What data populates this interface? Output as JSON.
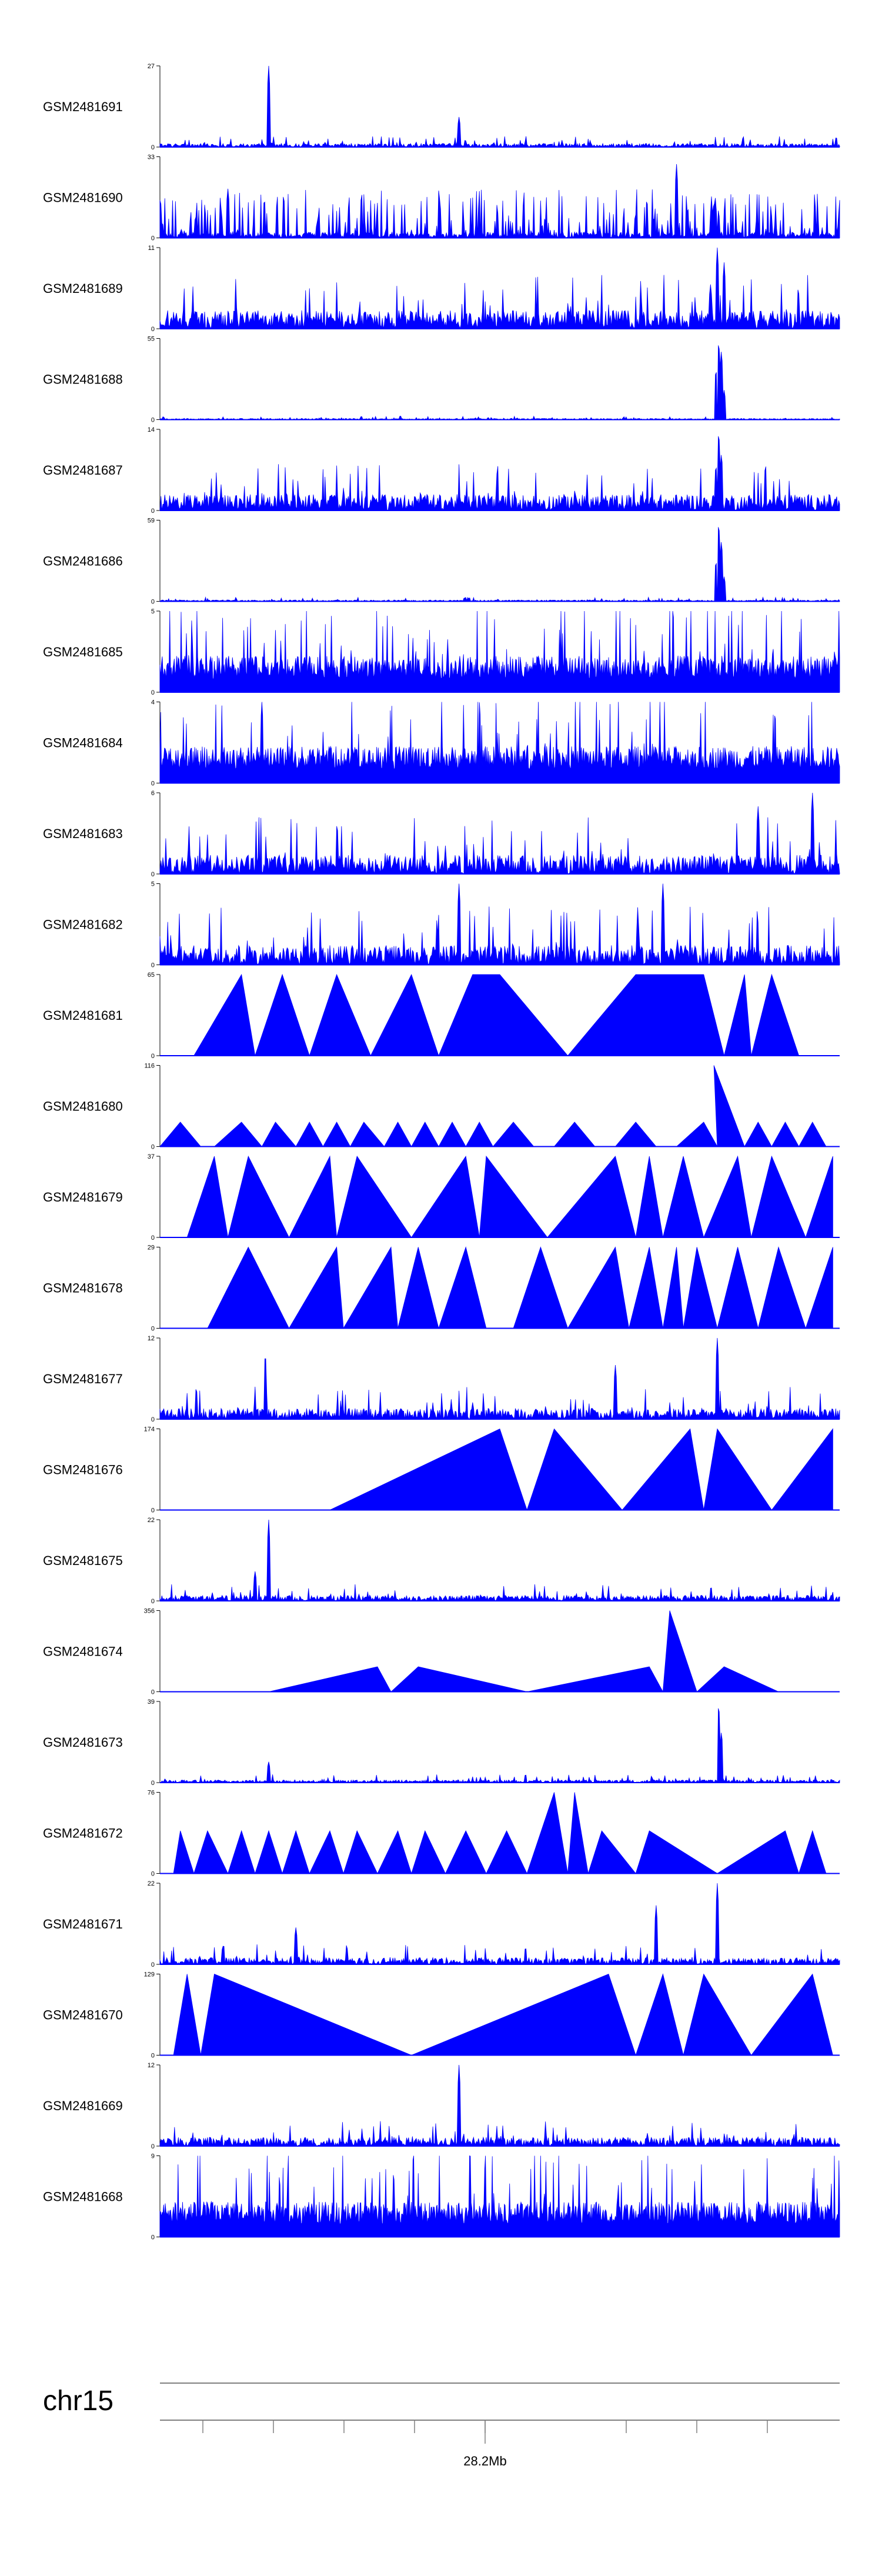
{
  "chart_data": {
    "type": "area",
    "title": "",
    "chromosome": "chr15",
    "position_label": "28.2Mb",
    "fill_color": "#0000ff",
    "axis_color": "#000000",
    "ruler_color": "#808080",
    "tracks": [
      {
        "name": "GSM2481691",
        "ymax": 27,
        "style": "noise",
        "base": 1.2,
        "spikes": [
          [
            0.16,
            27
          ],
          [
            0.44,
            10
          ]
        ]
      },
      {
        "name": "GSM2481690",
        "ymax": 33,
        "style": "mixed",
        "base": 8,
        "spikes": [
          [
            0.76,
            30
          ],
          [
            0.1,
            20
          ]
        ]
      },
      {
        "name": "GSM2481689",
        "ymax": 11,
        "style": "noise",
        "base": 2.5,
        "spikes": [
          [
            0.82,
            11
          ],
          [
            0.83,
            9
          ],
          [
            0.81,
            6
          ]
        ]
      },
      {
        "name": "GSM2481688",
        "ymax": 55,
        "style": "noise",
        "base": 0.8,
        "spikes": [
          [
            0.822,
            55
          ],
          [
            0.826,
            48
          ],
          [
            0.818,
            35
          ],
          [
            0.83,
            20
          ]
        ]
      },
      {
        "name": "GSM2481687",
        "ymax": 14,
        "style": "noise",
        "base": 2.8,
        "spikes": [
          [
            0.822,
            14
          ],
          [
            0.826,
            10
          ],
          [
            0.818,
            8
          ]
        ]
      },
      {
        "name": "GSM2481686",
        "ymax": 59,
        "style": "noise",
        "base": 1.0,
        "spikes": [
          [
            0.822,
            59
          ],
          [
            0.826,
            45
          ],
          [
            0.818,
            30
          ],
          [
            0.83,
            18
          ]
        ]
      },
      {
        "name": "GSM2481685",
        "ymax": 5,
        "style": "dense",
        "base": 1.6,
        "spikes": []
      },
      {
        "name": "GSM2481684",
        "ymax": 4,
        "style": "dense",
        "base": 1.3,
        "spikes": [
          [
            0.15,
            4
          ]
        ]
      },
      {
        "name": "GSM2481683",
        "ymax": 6,
        "style": "noise",
        "base": 1.4,
        "spikes": [
          [
            0.96,
            6
          ],
          [
            0.88,
            5
          ]
        ]
      },
      {
        "name": "GSM2481682",
        "ymax": 5,
        "style": "noise",
        "base": 1.2,
        "spikes": [
          [
            0.44,
            5
          ],
          [
            0.74,
            5
          ]
        ]
      },
      {
        "name": "GSM2481681",
        "ymax": 65,
        "style": "peaks",
        "peaks": [
          [
            0.05,
            0
          ],
          [
            0.12,
            65
          ],
          [
            0.14,
            0
          ],
          [
            0.18,
            65
          ],
          [
            0.22,
            0
          ],
          [
            0.26,
            65
          ],
          [
            0.31,
            0
          ],
          [
            0.37,
            65
          ],
          [
            0.41,
            0
          ],
          [
            0.46,
            65
          ],
          [
            0.5,
            65
          ],
          [
            0.6,
            0
          ],
          [
            0.7,
            65
          ],
          [
            0.8,
            65
          ],
          [
            0.83,
            0
          ],
          [
            0.86,
            65
          ],
          [
            0.87,
            0
          ],
          [
            0.9,
            65
          ],
          [
            0.94,
            0
          ]
        ]
      },
      {
        "name": "GSM2481680",
        "ymax": 116,
        "style": "peaks",
        "peaks": [
          [
            0.0,
            0
          ],
          [
            0.03,
            35
          ],
          [
            0.06,
            0
          ],
          [
            0.08,
            0
          ],
          [
            0.12,
            35
          ],
          [
            0.15,
            0
          ],
          [
            0.17,
            35
          ],
          [
            0.2,
            0
          ],
          [
            0.22,
            35
          ],
          [
            0.24,
            0
          ],
          [
            0.26,
            35
          ],
          [
            0.28,
            0
          ],
          [
            0.3,
            35
          ],
          [
            0.33,
            0
          ],
          [
            0.35,
            35
          ],
          [
            0.37,
            0
          ],
          [
            0.39,
            35
          ],
          [
            0.41,
            0
          ],
          [
            0.43,
            35
          ],
          [
            0.45,
            0
          ],
          [
            0.47,
            35
          ],
          [
            0.49,
            0
          ],
          [
            0.52,
            35
          ],
          [
            0.55,
            0
          ],
          [
            0.58,
            0
          ],
          [
            0.61,
            35
          ],
          [
            0.64,
            0
          ],
          [
            0.67,
            0
          ],
          [
            0.7,
            35
          ],
          [
            0.73,
            0
          ],
          [
            0.76,
            0
          ],
          [
            0.8,
            35
          ],
          [
            0.82,
            0
          ],
          [
            0.815,
            116
          ],
          [
            0.86,
            0
          ],
          [
            0.88,
            35
          ],
          [
            0.9,
            0
          ],
          [
            0.92,
            35
          ],
          [
            0.94,
            0
          ],
          [
            0.96,
            35
          ],
          [
            0.98,
            0
          ]
        ]
      },
      {
        "name": "GSM2481679",
        "ymax": 37,
        "style": "peaks",
        "peaks": [
          [
            0.04,
            0
          ],
          [
            0.08,
            37
          ],
          [
            0.1,
            0
          ],
          [
            0.13,
            37
          ],
          [
            0.19,
            0
          ],
          [
            0.25,
            37
          ],
          [
            0.26,
            0
          ],
          [
            0.29,
            37
          ],
          [
            0.37,
            0
          ],
          [
            0.45,
            37
          ],
          [
            0.47,
            0
          ],
          [
            0.48,
            37
          ],
          [
            0.57,
            0
          ],
          [
            0.67,
            37
          ],
          [
            0.7,
            0
          ],
          [
            0.72,
            37
          ],
          [
            0.74,
            0
          ],
          [
            0.77,
            37
          ],
          [
            0.8,
            0
          ],
          [
            0.85,
            37
          ],
          [
            0.87,
            0
          ],
          [
            0.9,
            37
          ],
          [
            0.95,
            0
          ],
          [
            0.99,
            37
          ],
          [
            0.99,
            0
          ]
        ]
      },
      {
        "name": "GSM2481678",
        "ymax": 29,
        "style": "peaks",
        "peaks": [
          [
            0.07,
            0
          ],
          [
            0.13,
            29
          ],
          [
            0.19,
            0
          ],
          [
            0.26,
            29
          ],
          [
            0.27,
            0
          ],
          [
            0.34,
            29
          ],
          [
            0.35,
            0
          ],
          [
            0.38,
            29
          ],
          [
            0.41,
            0
          ],
          [
            0.45,
            29
          ],
          [
            0.48,
            0
          ],
          [
            0.52,
            0
          ],
          [
            0.56,
            29
          ],
          [
            0.6,
            0
          ],
          [
            0.67,
            29
          ],
          [
            0.69,
            0
          ],
          [
            0.72,
            29
          ],
          [
            0.74,
            0
          ],
          [
            0.76,
            29
          ],
          [
            0.77,
            0
          ],
          [
            0.79,
            29
          ],
          [
            0.82,
            0
          ],
          [
            0.85,
            29
          ],
          [
            0.88,
            0
          ],
          [
            0.91,
            29
          ],
          [
            0.95,
            0
          ],
          [
            0.99,
            29
          ]
        ]
      },
      {
        "name": "GSM2481677",
        "ymax": 12,
        "style": "noise",
        "base": 1.6,
        "spikes": [
          [
            0.155,
            10
          ],
          [
            0.67,
            8
          ],
          [
            0.82,
            12
          ]
        ]
      },
      {
        "name": "GSM2481676",
        "ymax": 174,
        "style": "peaks",
        "peaks": [
          [
            0.25,
            0
          ],
          [
            0.5,
            174
          ],
          [
            0.54,
            0
          ],
          [
            0.58,
            174
          ],
          [
            0.68,
            0
          ],
          [
            0.78,
            174
          ],
          [
            0.8,
            0
          ],
          [
            0.82,
            174
          ],
          [
            0.9,
            0
          ],
          [
            0.99,
            174
          ],
          [
            0.99,
            0
          ]
        ]
      },
      {
        "name": "GSM2481675",
        "ymax": 22,
        "style": "noise",
        "base": 1.5,
        "spikes": [
          [
            0.16,
            22
          ],
          [
            0.14,
            8
          ]
        ]
      },
      {
        "name": "GSM2481674",
        "ymax": 356,
        "style": "peaks",
        "peaks": [
          [
            0.16,
            0
          ],
          [
            0.32,
            110
          ],
          [
            0.34,
            0
          ],
          [
            0.38,
            110
          ],
          [
            0.54,
            0
          ],
          [
            0.72,
            110
          ],
          [
            0.74,
            0
          ],
          [
            0.75,
            356
          ],
          [
            0.79,
            0
          ],
          [
            0.83,
            110
          ],
          [
            0.91,
            0
          ]
        ]
      },
      {
        "name": "GSM2481673",
        "ymax": 39,
        "style": "noise",
        "base": 1.3,
        "spikes": [
          [
            0.822,
            39
          ],
          [
            0.826,
            25
          ],
          [
            0.16,
            10
          ]
        ]
      },
      {
        "name": "GSM2481672",
        "ymax": 76,
        "style": "peaks",
        "peaks": [
          [
            0.02,
            0
          ],
          [
            0.03,
            40
          ],
          [
            0.05,
            0
          ],
          [
            0.07,
            40
          ],
          [
            0.1,
            0
          ],
          [
            0.12,
            40
          ],
          [
            0.14,
            0
          ],
          [
            0.16,
            40
          ],
          [
            0.18,
            0
          ],
          [
            0.2,
            40
          ],
          [
            0.22,
            0
          ],
          [
            0.25,
            40
          ],
          [
            0.27,
            0
          ],
          [
            0.29,
            40
          ],
          [
            0.32,
            0
          ],
          [
            0.35,
            40
          ],
          [
            0.37,
            0
          ],
          [
            0.39,
            40
          ],
          [
            0.42,
            0
          ],
          [
            0.45,
            40
          ],
          [
            0.48,
            0
          ],
          [
            0.51,
            40
          ],
          [
            0.54,
            0
          ],
          [
            0.58,
            76
          ],
          [
            0.6,
            0
          ],
          [
            0.61,
            76
          ],
          [
            0.63,
            0
          ],
          [
            0.65,
            40
          ],
          [
            0.7,
            0
          ],
          [
            0.72,
            40
          ],
          [
            0.82,
            0
          ],
          [
            0.92,
            40
          ],
          [
            0.94,
            0
          ],
          [
            0.96,
            40
          ],
          [
            0.98,
            0
          ]
        ]
      },
      {
        "name": "GSM2481671",
        "ymax": 22,
        "style": "noise",
        "base": 1.8,
        "spikes": [
          [
            0.82,
            22
          ],
          [
            0.73,
            16
          ],
          [
            0.2,
            10
          ]
        ]
      },
      {
        "name": "GSM2481670",
        "ymax": 129,
        "style": "peaks",
        "peaks": [
          [
            0.02,
            0
          ],
          [
            0.04,
            129
          ],
          [
            0.06,
            0
          ],
          [
            0.08,
            129
          ],
          [
            0.37,
            0
          ],
          [
            0.66,
            129
          ],
          [
            0.7,
            0
          ],
          [
            0.74,
            129
          ],
          [
            0.77,
            0
          ],
          [
            0.8,
            129
          ],
          [
            0.87,
            0
          ],
          [
            0.96,
            129
          ],
          [
            0.99,
            0
          ]
        ]
      },
      {
        "name": "GSM2481669",
        "ymax": 12,
        "style": "noise",
        "base": 1.3,
        "spikes": [
          [
            0.44,
            12
          ]
        ]
      },
      {
        "name": "GSM2481668",
        "ymax": 9,
        "style": "dense",
        "base": 2.8,
        "spikes": []
      }
    ]
  }
}
